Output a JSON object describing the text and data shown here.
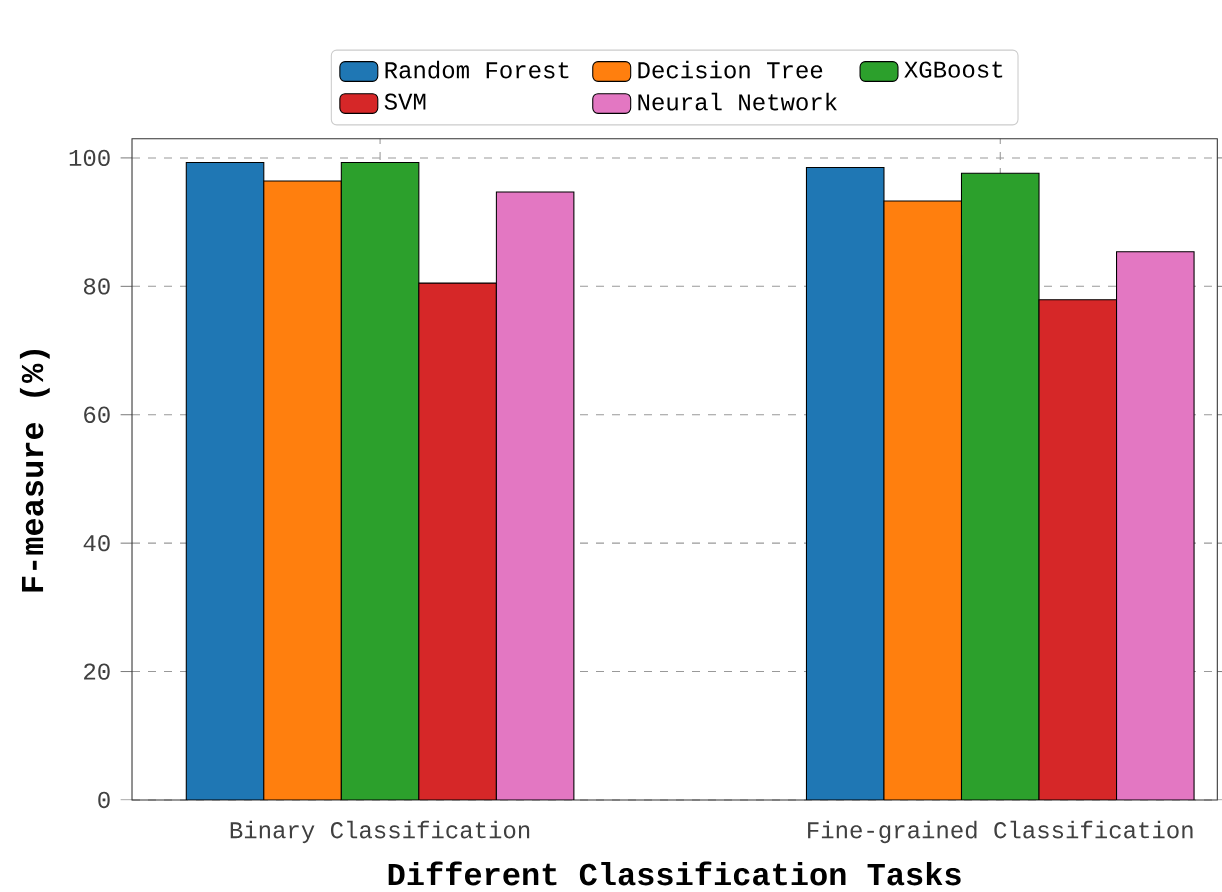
{
  "chart_data": {
    "type": "bar",
    "xlabel": "Different Classification Tasks",
    "ylabel": "F-measure (%)",
    "categories": [
      "Binary Classification",
      "Fine-grained Classification"
    ],
    "series": [
      {
        "name": "Random Forest",
        "color": "#1f77b4",
        "values": [
          99.3,
          98.5
        ]
      },
      {
        "name": "Decision Tree",
        "color": "#ff7f0e",
        "values": [
          96.4,
          93.3
        ]
      },
      {
        "name": "XGBoost",
        "color": "#2ca02c",
        "values": [
          99.3,
          97.6
        ]
      },
      {
        "name": "SVM",
        "color": "#d62728",
        "values": [
          80.5,
          77.9
        ]
      },
      {
        "name": "Neural Network",
        "color": "#e377c2",
        "values": [
          94.7,
          85.4
        ]
      }
    ],
    "ylim": [
      0,
      103
    ],
    "yticks": [
      0,
      20,
      40,
      60,
      80,
      100
    ],
    "grid": true,
    "legend": "top"
  }
}
